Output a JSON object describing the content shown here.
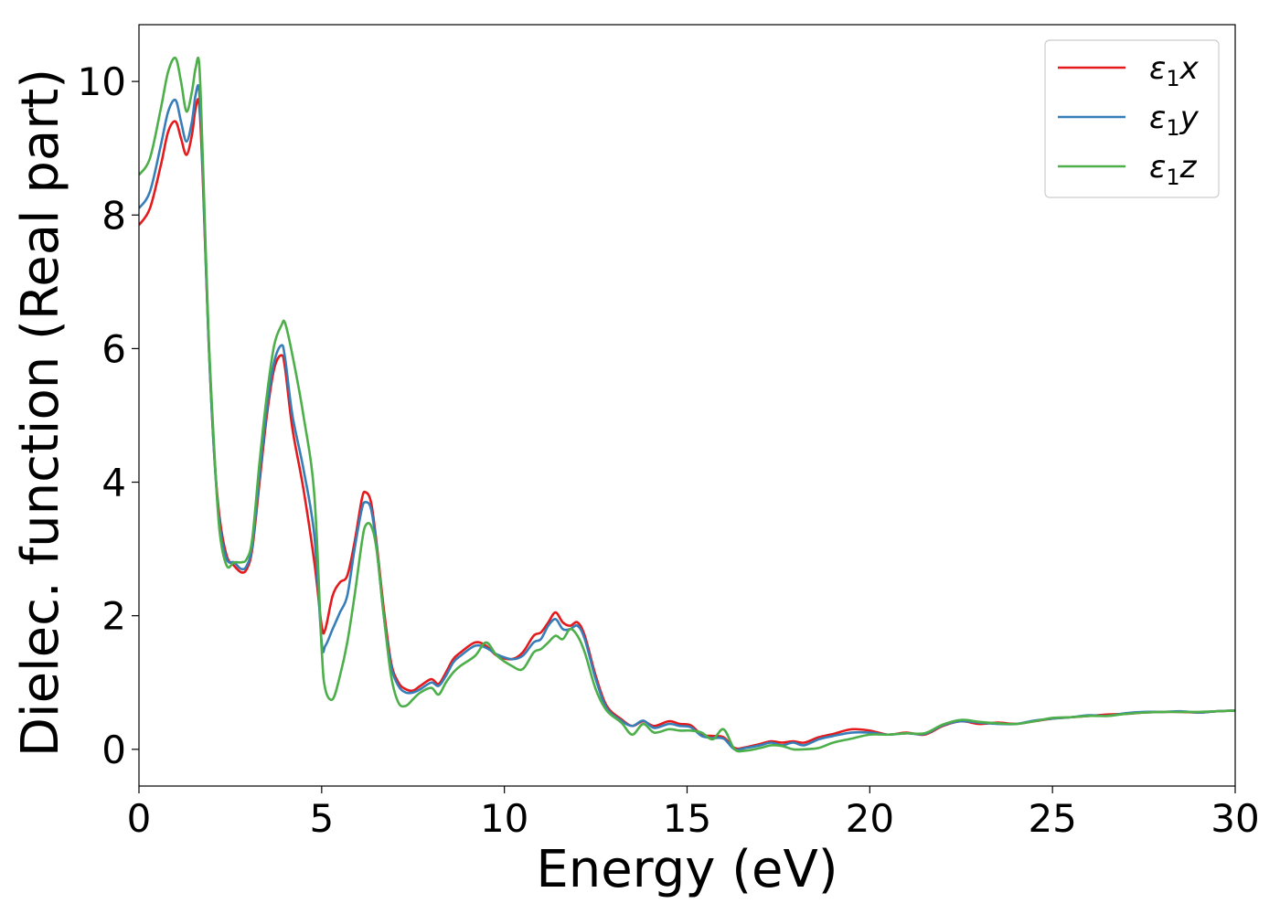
{
  "chart_data": {
    "type": "line",
    "xlabel": "Energy (eV)",
    "ylabel": "Dielec. function (Real part)",
    "xlim": [
      0,
      30
    ],
    "ylim": [
      -0.55,
      10.85
    ],
    "xticks": [
      0,
      5,
      10,
      15,
      20,
      25,
      30
    ],
    "yticks": [
      0,
      2,
      4,
      6,
      8,
      10
    ],
    "grid": false,
    "legend_position": "top-right",
    "series": [
      {
        "name": "ε₁x",
        "legend_base": "ε",
        "legend_sub": "1",
        "legend_var": "x",
        "color": "#e41a1c",
        "x": [
          0,
          0.3,
          0.6,
          0.8,
          1.0,
          1.15,
          1.3,
          1.45,
          1.55,
          1.65,
          1.75,
          1.9,
          2.05,
          2.2,
          2.4,
          2.6,
          2.8,
          2.95,
          3.1,
          3.3,
          3.5,
          3.7,
          3.9,
          4.0,
          4.2,
          4.5,
          4.8,
          5.0,
          5.1,
          5.3,
          5.5,
          5.7,
          5.9,
          6.1,
          6.2,
          6.35,
          6.5,
          6.7,
          6.9,
          7.1,
          7.3,
          7.5,
          7.7,
          8.0,
          8.2,
          8.4,
          8.6,
          8.8,
          9.2,
          9.5,
          9.8,
          10.2,
          10.5,
          10.8,
          11.0,
          11.2,
          11.4,
          11.6,
          11.8,
          12.0,
          12.2,
          12.5,
          12.8,
          13.2,
          13.5,
          13.8,
          14.1,
          14.5,
          14.8,
          15.1,
          15.4,
          15.7,
          16.0,
          16.3,
          16.6,
          17.0,
          17.3,
          17.6,
          17.9,
          18.2,
          18.6,
          19.0,
          19.5,
          20.0,
          20.5,
          21.0,
          21.5,
          22.0,
          22.5,
          23.0,
          23.5,
          24.0,
          24.5,
          25.0,
          25.5,
          26.0,
          26.5,
          27.0,
          27.5,
          28.0,
          28.5,
          29.0,
          29.5,
          30.0
        ],
        "y": [
          7.85,
          8.1,
          8.75,
          9.25,
          9.4,
          9.15,
          8.9,
          9.2,
          9.6,
          9.65,
          8.5,
          6.2,
          4.5,
          3.5,
          2.9,
          2.75,
          2.65,
          2.7,
          3.0,
          4.0,
          5.0,
          5.7,
          5.9,
          5.7,
          4.8,
          3.9,
          2.8,
          1.85,
          1.8,
          2.3,
          2.5,
          2.6,
          3.1,
          3.75,
          3.85,
          3.7,
          3.1,
          2.1,
          1.3,
          1.0,
          0.9,
          0.88,
          0.95,
          1.05,
          0.98,
          1.15,
          1.35,
          1.45,
          1.6,
          1.55,
          1.4,
          1.35,
          1.45,
          1.7,
          1.75,
          1.9,
          2.05,
          1.9,
          1.85,
          1.9,
          1.7,
          1.1,
          0.65,
          0.45,
          0.35,
          0.42,
          0.35,
          0.42,
          0.38,
          0.36,
          0.22,
          0.2,
          0.18,
          0.02,
          0.03,
          0.08,
          0.12,
          0.1,
          0.12,
          0.1,
          0.18,
          0.23,
          0.3,
          0.28,
          0.22,
          0.25,
          0.22,
          0.35,
          0.42,
          0.38,
          0.4,
          0.38,
          0.42,
          0.46,
          0.48,
          0.5,
          0.52,
          0.53,
          0.55,
          0.56,
          0.56,
          0.55,
          0.57,
          0.58
        ]
      },
      {
        "name": "ε₁y",
        "legend_base": "ε",
        "legend_sub": "1",
        "legend_var": "y",
        "color": "#377eb8",
        "x": [
          0,
          0.3,
          0.6,
          0.8,
          1.0,
          1.15,
          1.3,
          1.45,
          1.55,
          1.65,
          1.75,
          1.9,
          2.05,
          2.2,
          2.4,
          2.6,
          2.8,
          2.95,
          3.1,
          3.3,
          3.5,
          3.7,
          3.9,
          4.0,
          4.2,
          4.5,
          4.8,
          5.0,
          5.1,
          5.3,
          5.5,
          5.7,
          5.9,
          6.1,
          6.2,
          6.35,
          6.5,
          6.7,
          6.9,
          7.1,
          7.3,
          7.5,
          7.7,
          8.0,
          8.2,
          8.4,
          8.6,
          8.8,
          9.2,
          9.5,
          9.8,
          10.2,
          10.5,
          10.8,
          11.0,
          11.2,
          11.4,
          11.6,
          11.8,
          12.0,
          12.2,
          12.5,
          12.8,
          13.2,
          13.5,
          13.8,
          14.1,
          14.5,
          14.8,
          15.1,
          15.4,
          15.7,
          16.0,
          16.3,
          16.6,
          17.0,
          17.3,
          17.6,
          17.9,
          18.2,
          18.6,
          19.0,
          19.5,
          20.0,
          20.5,
          21.0,
          21.5,
          22.0,
          22.5,
          23.0,
          23.5,
          24.0,
          24.5,
          25.0,
          25.5,
          26.0,
          26.5,
          27.0,
          27.5,
          28.0,
          28.5,
          29.0,
          29.5,
          30.0
        ],
        "y": [
          8.1,
          8.35,
          9.05,
          9.55,
          9.72,
          9.4,
          9.1,
          9.4,
          9.8,
          9.85,
          8.6,
          6.2,
          4.5,
          3.4,
          2.85,
          2.8,
          2.7,
          2.75,
          3.05,
          4.1,
          5.1,
          5.8,
          6.05,
          5.85,
          5.0,
          4.2,
          3.2,
          1.6,
          1.55,
          1.8,
          2.05,
          2.3,
          3.0,
          3.6,
          3.7,
          3.6,
          3.05,
          2.0,
          1.25,
          0.95,
          0.85,
          0.85,
          0.9,
          1.0,
          0.95,
          1.1,
          1.3,
          1.4,
          1.55,
          1.52,
          1.42,
          1.35,
          1.4,
          1.6,
          1.65,
          1.85,
          1.95,
          1.8,
          1.8,
          1.85,
          1.65,
          1.05,
          0.62,
          0.43,
          0.35,
          0.43,
          0.32,
          0.38,
          0.35,
          0.33,
          0.2,
          0.17,
          0.16,
          0.0,
          0.02,
          0.06,
          0.1,
          0.06,
          0.1,
          0.06,
          0.15,
          0.2,
          0.25,
          0.25,
          0.22,
          0.24,
          0.23,
          0.36,
          0.42,
          0.4,
          0.38,
          0.38,
          0.43,
          0.46,
          0.48,
          0.51,
          0.5,
          0.54,
          0.56,
          0.56,
          0.57,
          0.55,
          0.57,
          0.58
        ]
      },
      {
        "name": "ε₁z",
        "legend_base": "ε",
        "legend_sub": "1",
        "legend_var": "z",
        "color": "#4daf4a",
        "x": [
          0,
          0.3,
          0.6,
          0.8,
          1.0,
          1.15,
          1.3,
          1.45,
          1.55,
          1.65,
          1.75,
          1.9,
          2.05,
          2.2,
          2.4,
          2.6,
          2.8,
          2.95,
          3.1,
          3.3,
          3.5,
          3.7,
          3.9,
          4.0,
          4.2,
          4.5,
          4.8,
          5.0,
          5.1,
          5.3,
          5.5,
          5.7,
          5.9,
          6.1,
          6.2,
          6.35,
          6.5,
          6.7,
          6.9,
          7.1,
          7.3,
          7.5,
          7.7,
          8.0,
          8.2,
          8.4,
          8.6,
          8.8,
          9.2,
          9.5,
          9.8,
          10.2,
          10.5,
          10.8,
          11.0,
          11.2,
          11.4,
          11.6,
          11.8,
          12.0,
          12.2,
          12.5,
          12.8,
          13.2,
          13.5,
          13.8,
          14.1,
          14.5,
          14.8,
          15.1,
          15.4,
          15.7,
          16.0,
          16.3,
          16.6,
          17.0,
          17.3,
          17.6,
          17.9,
          18.2,
          18.6,
          19.0,
          19.5,
          20.0,
          20.5,
          21.0,
          21.5,
          22.0,
          22.5,
          23.0,
          23.5,
          24.0,
          24.5,
          25.0,
          25.5,
          26.0,
          26.5,
          27.0,
          27.5,
          28.0,
          28.5,
          29.0,
          29.5,
          30.0
        ],
        "y": [
          8.6,
          8.85,
          9.6,
          10.15,
          10.35,
          10.0,
          9.55,
          9.85,
          10.2,
          10.25,
          8.8,
          6.3,
          4.6,
          3.3,
          2.75,
          2.8,
          2.8,
          2.85,
          3.15,
          4.3,
          5.3,
          6.05,
          6.35,
          6.38,
          5.9,
          5.0,
          3.8,
          1.5,
          0.9,
          0.75,
          1.1,
          1.6,
          2.3,
          3.1,
          3.35,
          3.35,
          3.0,
          2.0,
          1.1,
          0.7,
          0.65,
          0.75,
          0.85,
          0.92,
          0.82,
          1.0,
          1.15,
          1.25,
          1.4,
          1.6,
          1.4,
          1.25,
          1.2,
          1.45,
          1.5,
          1.6,
          1.7,
          1.65,
          1.8,
          1.7,
          1.45,
          0.9,
          0.58,
          0.4,
          0.22,
          0.38,
          0.25,
          0.3,
          0.28,
          0.28,
          0.25,
          0.15,
          0.3,
          0.0,
          -0.02,
          0.02,
          0.06,
          0.05,
          0.0,
          0.0,
          0.02,
          0.1,
          0.16,
          0.22,
          0.22,
          0.24,
          0.24,
          0.37,
          0.44,
          0.41,
          0.39,
          0.38,
          0.42,
          0.47,
          0.48,
          0.5,
          0.5,
          0.53,
          0.55,
          0.56,
          0.56,
          0.56,
          0.57,
          0.58
        ]
      }
    ]
  }
}
